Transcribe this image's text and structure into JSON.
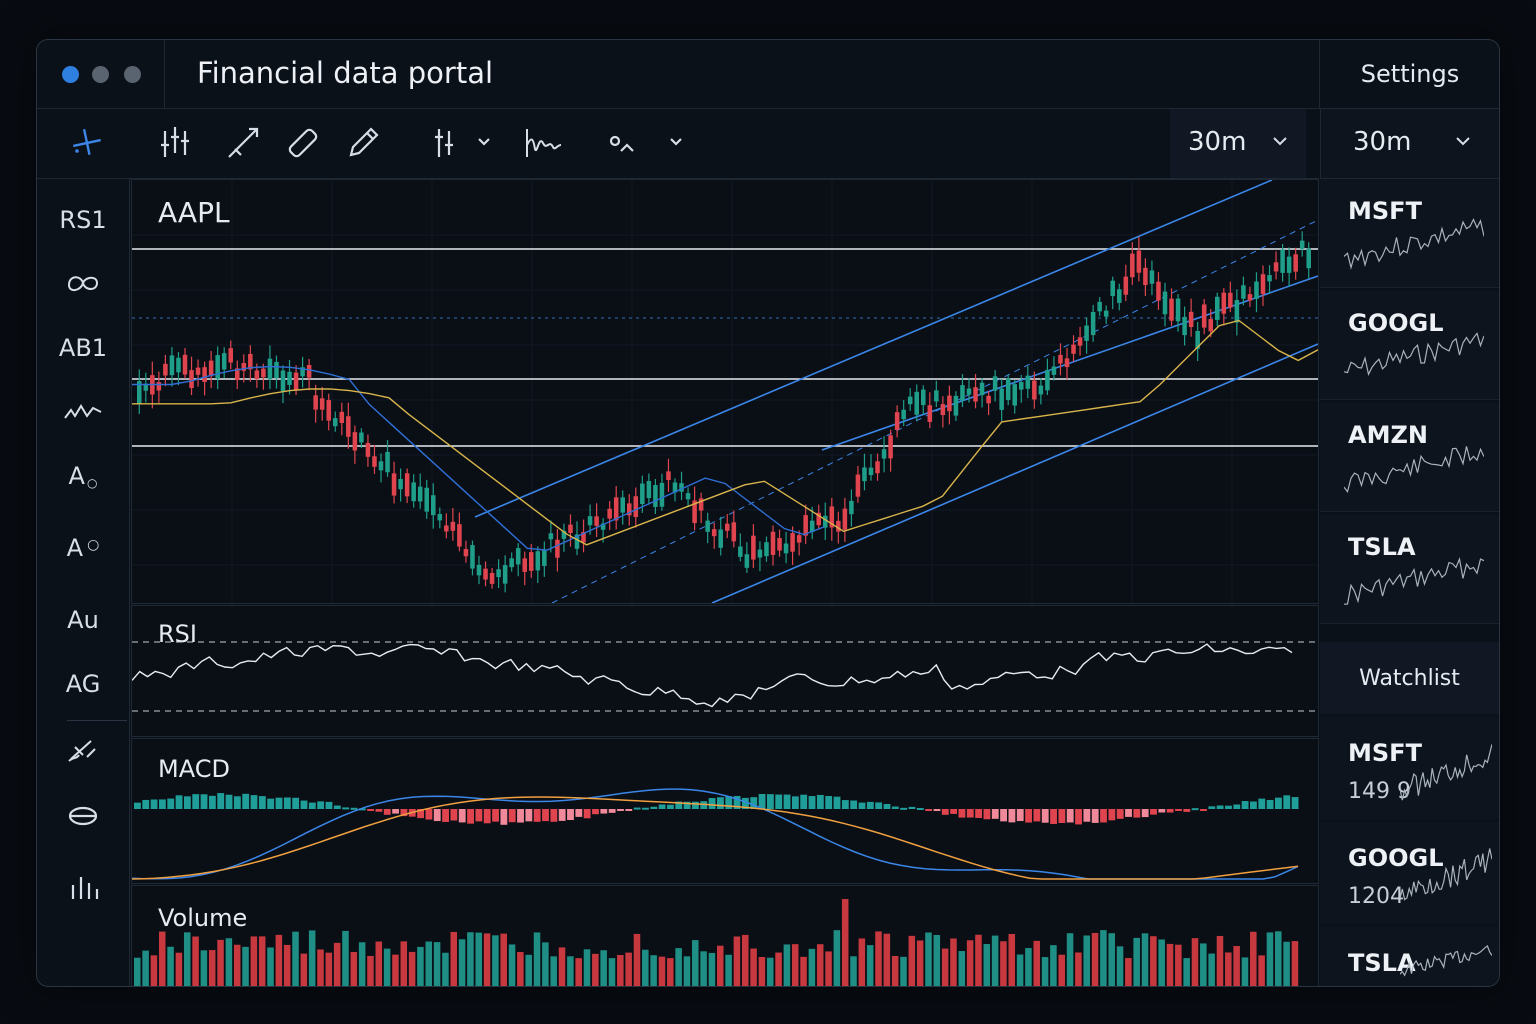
{
  "window": {
    "title": "Financial data portal",
    "dots": [
      "#2f7fe0",
      "#5a6470",
      "#5a6470"
    ]
  },
  "header": {
    "settings_label": "Settings"
  },
  "toolbar": {
    "tools": [
      "crosshair-icon",
      "candles-icon",
      "trend-line-icon",
      "ruler-icon",
      "pencil-icon",
      "indicators-icon",
      "wave-icon",
      "shapes-icon"
    ],
    "timeframe": "30m",
    "timeframe_secondary": "30m"
  },
  "sidebar": {
    "items": [
      {
        "label": "RS1",
        "kind": "text"
      },
      {
        "label": "",
        "kind": "icon",
        "icon": "loop-icon"
      },
      {
        "label": "AB1",
        "kind": "text"
      },
      {
        "label": "",
        "kind": "icon",
        "icon": "wave-icon"
      },
      {
        "label": "A",
        "kind": "text"
      },
      {
        "label": "A",
        "kind": "text"
      },
      {
        "label": "Au",
        "kind": "text"
      },
      {
        "label": "AG",
        "kind": "text"
      },
      {
        "label": "",
        "kind": "icon",
        "icon": "brush-icon"
      },
      {
        "label": "",
        "kind": "icon",
        "icon": "database-icon"
      },
      {
        "label": "",
        "kind": "icon",
        "icon": "bar-chart-icon"
      }
    ]
  },
  "main_chart": {
    "symbol": "AAPL",
    "colors": {
      "up": "#1f9e8a",
      "down": "#e0444e",
      "ma_fast": "#2f6fd6",
      "ma_slow": "#d8b44a",
      "channel": "#3b86e8"
    }
  },
  "rsi": {
    "label": "RSI"
  },
  "macd": {
    "label": "MACD"
  },
  "volume": {
    "label": "Volume"
  },
  "right_panel": {
    "mini_charts": [
      {
        "symbol": "MSFT"
      },
      {
        "symbol": "GOOGL"
      },
      {
        "symbol": "AMZN"
      },
      {
        "symbol": "TSLA"
      }
    ],
    "watchlist_title": "Watchlist",
    "watchlist": [
      {
        "symbol": "MSFT",
        "price": "149 9"
      },
      {
        "symbol": "GOOGL",
        "price": "1204"
      },
      {
        "symbol": "TSLA",
        "price": ""
      }
    ]
  }
}
